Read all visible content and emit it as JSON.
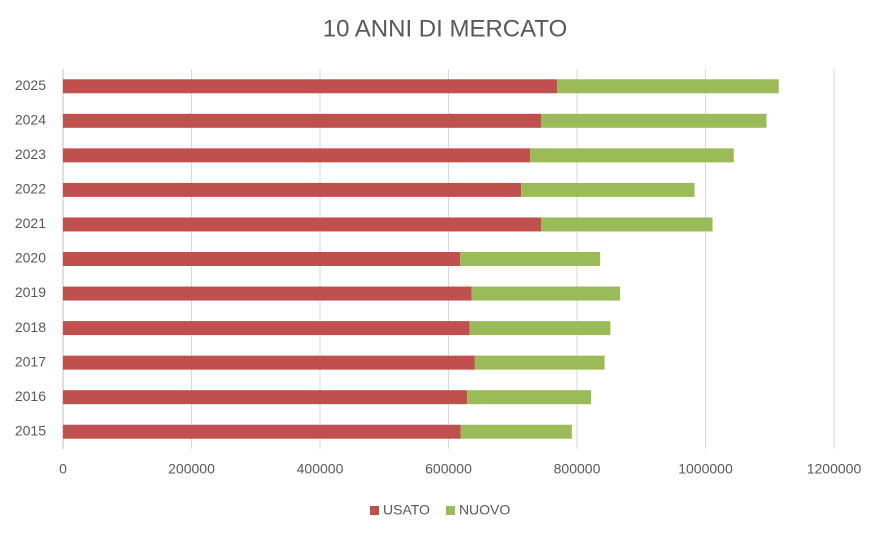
{
  "chart_data": {
    "type": "stacked-barh",
    "title": "10 ANNI DI MERCATO",
    "categories": [
      "2015",
      "2016",
      "2017",
      "2018",
      "2019",
      "2020",
      "2021",
      "2022",
      "2023",
      "2024",
      "2025"
    ],
    "series": [
      {
        "name": "USATO",
        "color": "#c0504d",
        "values": [
          619000,
          629000,
          641000,
          633000,
          636000,
          618000,
          744000,
          713000,
          727000,
          744000,
          769000
        ]
      },
      {
        "name": "NUOVO",
        "color": "#9bbb59",
        "values": [
          173000,
          193000,
          202000,
          219000,
          231000,
          218000,
          267000,
          270000,
          317000,
          351000,
          345000
        ]
      }
    ],
    "xlim": [
      0,
      1200000
    ],
    "xticks": [
      0,
      200000,
      400000,
      600000,
      800000,
      1000000,
      1200000
    ],
    "grid": true,
    "legend": "bottom"
  }
}
